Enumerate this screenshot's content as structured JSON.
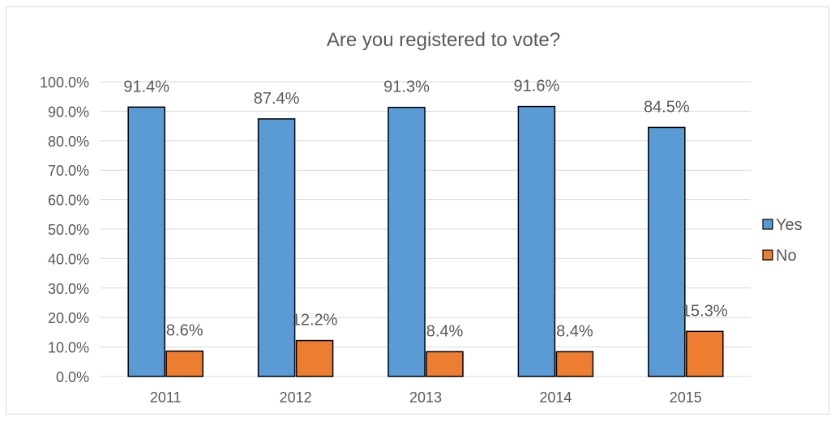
{
  "chart_data": {
    "type": "bar",
    "title": "Are you registered to vote?",
    "xlabel": "",
    "ylabel": "",
    "categories": [
      "2011",
      "2012",
      "2013",
      "2014",
      "2015"
    ],
    "series": [
      {
        "name": "Yes",
        "color": "#5b9bd5",
        "values": [
          91.4,
          87.4,
          91.3,
          91.6,
          84.5
        ],
        "labels": [
          "91.4%",
          "87.4%",
          "91.3%",
          "91.6%",
          "84.5%"
        ]
      },
      {
        "name": "No",
        "color": "#ed7d31",
        "values": [
          8.6,
          12.2,
          8.4,
          8.4,
          15.3
        ],
        "labels": [
          "8.6%",
          "12.2%",
          "8.4%",
          "8.4%",
          "15.3%"
        ]
      }
    ],
    "ylim": [
      0,
      100
    ],
    "yticks": [
      0,
      10,
      20,
      30,
      40,
      50,
      60,
      70,
      80,
      90,
      100
    ],
    "ytick_labels": [
      "0.0%",
      "10.0%",
      "20.0%",
      "30.0%",
      "40.0%",
      "50.0%",
      "60.0%",
      "70.0%",
      "80.0%",
      "90.0%",
      "100.0%"
    ],
    "grid": true,
    "legend": "right",
    "bar_outline": "#000000",
    "grid_color": "#d9d9d9"
  }
}
